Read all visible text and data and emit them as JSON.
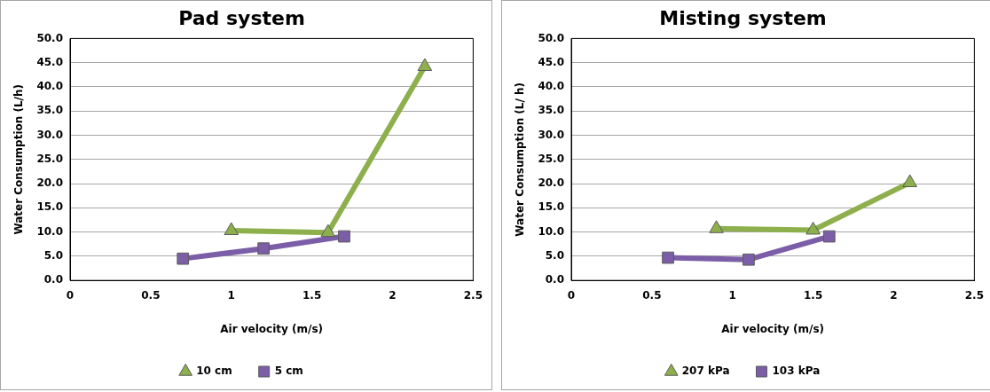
{
  "chart_data": [
    {
      "type": "line",
      "title": "Pad system",
      "xlabel": "Air velocity (m/s)",
      "ylabel": "Water Consumption (L/h)",
      "xlim": [
        0,
        2.5
      ],
      "xticks": [
        0,
        0.5,
        1,
        1.5,
        2,
        2.5
      ],
      "ylim": [
        0,
        50
      ],
      "yticks": [
        {
          "value": 0,
          "label": "0.0"
        },
        {
          "value": 5,
          "label": "5.0"
        },
        {
          "value": 10,
          "label": "10.0"
        },
        {
          "value": 15,
          "label": "15.0"
        },
        {
          "value": 20,
          "label": "20.0"
        },
        {
          "value": 25,
          "label": "25.0"
        },
        {
          "value": 30,
          "label": "30.0"
        },
        {
          "value": 35,
          "label": "35.0"
        },
        {
          "value": 40,
          "label": "40.0"
        },
        {
          "value": 45,
          "label": "45.0"
        },
        {
          "value": 50,
          "label": "50.0"
        }
      ],
      "grid": "y",
      "legend": "bottom",
      "series": [
        {
          "name": "10 cm",
          "color": "#8db04d",
          "marker": "triangle",
          "x": [
            1,
            1.6,
            2.2
          ],
          "values": [
            10.3,
            9.9,
            44.2
          ]
        },
        {
          "name": "5 cm",
          "color": "#7b5ea7",
          "marker": "square",
          "x": [
            0.7,
            1.2,
            1.7
          ],
          "values": [
            4.5,
            6.6,
            9.1
          ]
        }
      ]
    },
    {
      "type": "line",
      "title": "Misting system",
      "xlabel": "Air velocity (m/s)",
      "ylabel": "Water Consumption (L/ h)",
      "xlim": [
        0,
        2.5
      ],
      "xticks": [
        0,
        0.5,
        1,
        1.5,
        2,
        2.5
      ],
      "ylim": [
        0,
        50
      ],
      "yticks": [
        {
          "value": 0,
          "label": "0.0"
        },
        {
          "value": 5,
          "label": "5.0"
        },
        {
          "value": 10,
          "label": "10.0"
        },
        {
          "value": 15,
          "label": "15.0"
        },
        {
          "value": 20,
          "label": "20.0"
        },
        {
          "value": 25,
          "label": "25.0"
        },
        {
          "value": 30,
          "label": "30.0"
        },
        {
          "value": 35,
          "label": "35.0"
        },
        {
          "value": 40,
          "label": "40.0"
        },
        {
          "value": 45,
          "label": "45.0"
        },
        {
          "value": 50,
          "label": "50.0"
        }
      ],
      "grid": "y",
      "legend": "bottom",
      "series": [
        {
          "name": "207 kPa",
          "color": "#8db04d",
          "marker": "triangle",
          "x": [
            0.9,
            1.5,
            2.1
          ],
          "values": [
            10.7,
            10.4,
            20.2
          ]
        },
        {
          "name": "103 kPa",
          "color": "#7b5ea7",
          "marker": "square",
          "x": [
            0.6,
            1.1,
            1.6
          ],
          "values": [
            4.7,
            4.3,
            9.1
          ]
        }
      ]
    }
  ]
}
